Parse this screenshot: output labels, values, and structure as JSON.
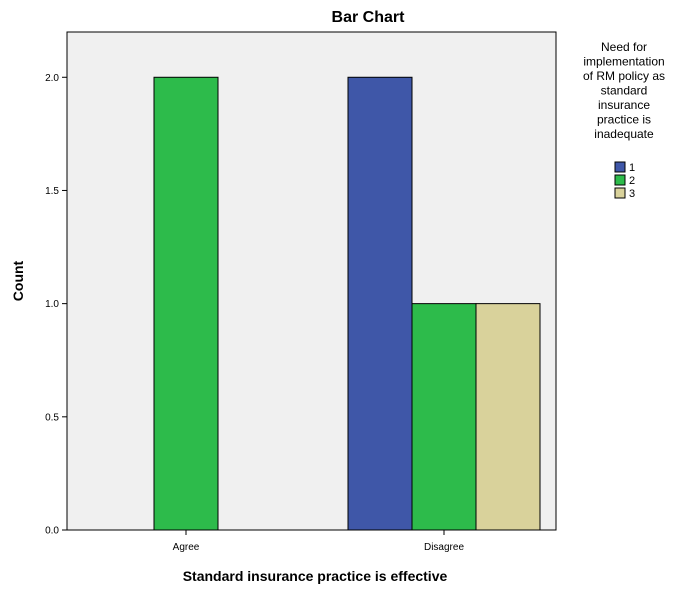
{
  "chart_data": {
    "type": "bar",
    "title": "Bar Chart",
    "xlabel": "Standard insurance practice is effective",
    "ylabel": "Count",
    "categories": [
      "Agree",
      "Disagree"
    ],
    "ylim": [
      0,
      2.2
    ],
    "yticks": [
      "0.0",
      "0.5",
      "1.0",
      "1.5",
      "2.0"
    ],
    "ytick_values": [
      0,
      0.5,
      1,
      1.5,
      2
    ],
    "legend": {
      "title_lines": [
        "Need for",
        "implementation",
        "of RM policy as",
        "standard",
        "insurance",
        "practice is",
        "inadequate"
      ],
      "placement": "right"
    },
    "series": [
      {
        "name": "1",
        "color": "#3f57a8",
        "values": [
          0,
          2
        ]
      },
      {
        "name": "2",
        "color": "#2dbb4b",
        "values": [
          2,
          1
        ]
      },
      {
        "name": "3",
        "color": "#d9d29b",
        "values": [
          0,
          1
        ]
      }
    ],
    "grid": false,
    "plot_background": "#f0f0f0"
  }
}
